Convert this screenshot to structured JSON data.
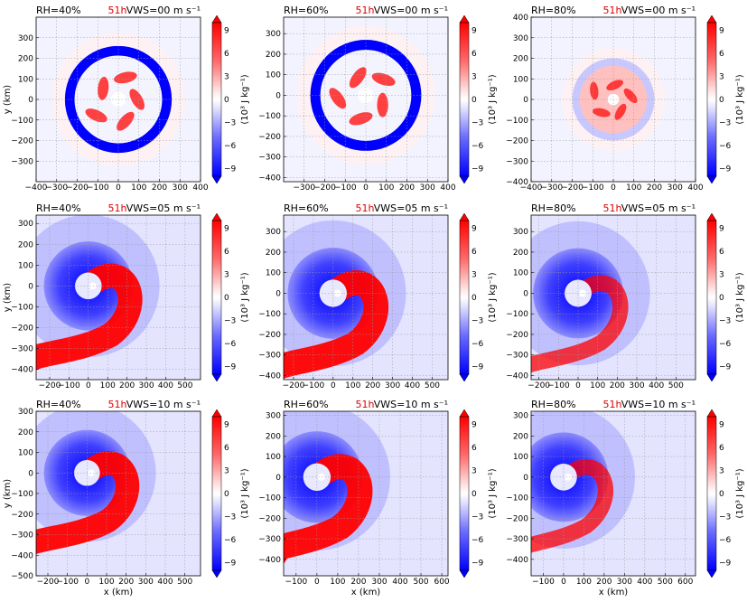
{
  "figure": {
    "colorbar_ticks": [
      "9",
      "6",
      "3",
      "0",
      "−3",
      "−6",
      "−9"
    ],
    "colorbar_label": "(10³ J kg⁻¹)",
    "colors": {
      "neg": "#0000ff",
      "zero": "#ffffff",
      "pos": "#ff0000",
      "grid": "#b0b0b0"
    }
  },
  "chart_data": [
    {
      "type": "heatmap",
      "row": 0,
      "col": 0,
      "title_left": "RH=40%",
      "title_time": "51h",
      "title_right": "VWS=00 m s⁻¹",
      "xlabel": "",
      "ylabel": "y (km)",
      "xlim": [
        -400,
        400
      ],
      "ylim": [
        -400,
        400
      ],
      "xticks": [
        -400,
        -300,
        -200,
        -100,
        0,
        100,
        200,
        300,
        400
      ],
      "yticks": [
        -300,
        -200,
        -100,
        0,
        100,
        200,
        300
      ],
      "clim": [
        -10,
        10
      ],
      "units": "10³ J kg⁻¹"
    },
    {
      "type": "heatmap",
      "row": 0,
      "col": 1,
      "title_left": "RH=60%",
      "title_time": "51h",
      "title_right": "VWS=00 m s⁻¹",
      "xlabel": "",
      "ylabel": "",
      "xlim": [
        -400,
        400
      ],
      "ylim": [
        -420,
        380
      ],
      "xticks": [
        -300,
        -200,
        -100,
        0,
        100,
        200,
        300,
        400
      ],
      "yticks": [
        -400,
        -300,
        -200,
        -100,
        0,
        100,
        200,
        300
      ],
      "clim": [
        -10,
        10
      ],
      "units": "10³ J kg⁻¹"
    },
    {
      "type": "heatmap",
      "row": 0,
      "col": 2,
      "title_left": "RH=80%",
      "title_time": "51h",
      "title_right": "VWS=00 m s⁻¹",
      "xlabel": "",
      "ylabel": "",
      "xlim": [
        -400,
        400
      ],
      "ylim": [
        -400,
        400
      ],
      "xticks": [
        -400,
        -300,
        -200,
        -100,
        0,
        100,
        200,
        300,
        400
      ],
      "yticks": [
        -400,
        -300,
        -200,
        -100,
        0,
        100,
        200,
        300,
        400
      ],
      "clim": [
        -10,
        10
      ],
      "units": "10³ J kg⁻¹"
    },
    {
      "type": "heatmap",
      "row": 1,
      "col": 0,
      "title_left": "RH=40%",
      "title_time": "51h",
      "title_right": "VWS=05 m s⁻¹",
      "xlabel": "",
      "ylabel": "y (km)",
      "xlim": [
        -270,
        580
      ],
      "ylim": [
        -450,
        340
      ],
      "xticks": [
        -200,
        -100,
        0,
        100,
        200,
        300,
        400,
        500
      ],
      "yticks": [
        -400,
        -300,
        -200,
        -100,
        0,
        100,
        200,
        300
      ],
      "clim": [
        -10,
        10
      ],
      "units": "10³ J kg⁻¹"
    },
    {
      "type": "heatmap",
      "row": 1,
      "col": 1,
      "title_left": "RH=60%",
      "title_time": "51h",
      "title_right": "VWS=05 m s⁻¹",
      "xlabel": "",
      "ylabel": "",
      "xlim": [
        -250,
        580
      ],
      "ylim": [
        -420,
        380
      ],
      "xticks": [
        -200,
        -100,
        0,
        100,
        200,
        300,
        400,
        500
      ],
      "yticks": [
        -400,
        -300,
        -200,
        -100,
        0,
        100,
        200,
        300
      ],
      "clim": [
        -10,
        10
      ],
      "units": "10³ J kg⁻¹"
    },
    {
      "type": "heatmap",
      "row": 1,
      "col": 2,
      "title_left": "RH=80%",
      "title_time": "51h",
      "title_right": "VWS=05 m s⁻¹",
      "xlabel": "",
      "ylabel": "",
      "xlim": [
        -240,
        600
      ],
      "ylim": [
        -420,
        380
      ],
      "xticks": [
        -200,
        -100,
        0,
        100,
        200,
        300,
        400,
        500
      ],
      "yticks": [
        -400,
        -300,
        -200,
        -100,
        0,
        100,
        200,
        300
      ],
      "clim": [
        -10,
        10
      ],
      "units": "10³ J kg⁻¹"
    },
    {
      "type": "heatmap",
      "row": 2,
      "col": 0,
      "title_left": "RH=40%",
      "title_time": "51h",
      "title_right": "VWS=10 m s⁻¹",
      "xlabel": "x (km)",
      "ylabel": "y (km)",
      "xlim": [
        -260,
        580
      ],
      "ylim": [
        -500,
        300
      ],
      "xticks": [
        -200,
        -100,
        0,
        100,
        200,
        300,
        400,
        500
      ],
      "yticks": [
        -500,
        -400,
        -300,
        -200,
        -100,
        0,
        100,
        200,
        300
      ],
      "clim": [
        -10,
        10
      ],
      "units": "10³ J kg⁻¹"
    },
    {
      "type": "heatmap",
      "row": 2,
      "col": 1,
      "title_left": "RH=60%",
      "title_time": "51h",
      "title_right": "VWS=10 m s⁻¹",
      "xlabel": "x (km)",
      "ylabel": "",
      "xlim": [
        -160,
        630
      ],
      "ylim": [
        -480,
        320
      ],
      "xticks": [
        -100,
        0,
        100,
        200,
        300,
        400,
        500,
        600
      ],
      "yticks": [
        -400,
        -300,
        -200,
        -100,
        0,
        100,
        200,
        300
      ],
      "clim": [
        -10,
        10
      ],
      "units": "10³ J kg⁻¹"
    },
    {
      "type": "heatmap",
      "row": 2,
      "col": 2,
      "title_left": "RH=80%",
      "title_time": "51h",
      "title_right": "VWS=10 m s⁻¹",
      "xlabel": "x (km)",
      "ylabel": "",
      "xlim": [
        -160,
        650
      ],
      "ylim": [
        -480,
        320
      ],
      "xticks": [
        -100,
        0,
        100,
        200,
        300,
        400,
        500,
        600
      ],
      "yticks": [
        -400,
        -300,
        -200,
        -100,
        0,
        100,
        200,
        300
      ],
      "clim": [
        -10,
        10
      ],
      "units": "10³ J kg⁻¹"
    }
  ]
}
